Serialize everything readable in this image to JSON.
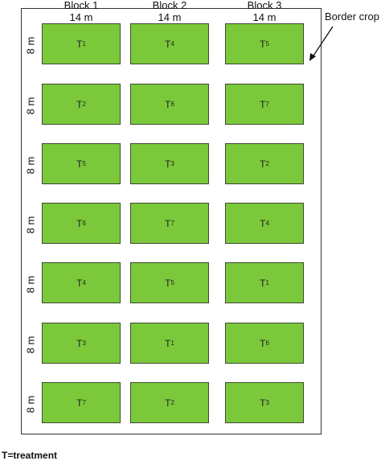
{
  "blocks": [
    {
      "name": "Block 1",
      "width": "14 m"
    },
    {
      "name": "Block 2",
      "width": "14 m"
    },
    {
      "name": "Block 3",
      "width": "14 m"
    }
  ],
  "row_length": "8 m",
  "rows": [
    [
      "1",
      "4",
      "5"
    ],
    [
      "2",
      "6",
      "7"
    ],
    [
      "5",
      "3",
      "2"
    ],
    [
      "6",
      "7",
      "4"
    ],
    [
      "4",
      "5",
      "1"
    ],
    [
      "3",
      "1",
      "6"
    ],
    [
      "7",
      "2",
      "3"
    ]
  ],
  "plot_prefix": "T",
  "plot_color": "#7bc93b",
  "border_label": "Border crop",
  "footnote": "T=treatment"
}
